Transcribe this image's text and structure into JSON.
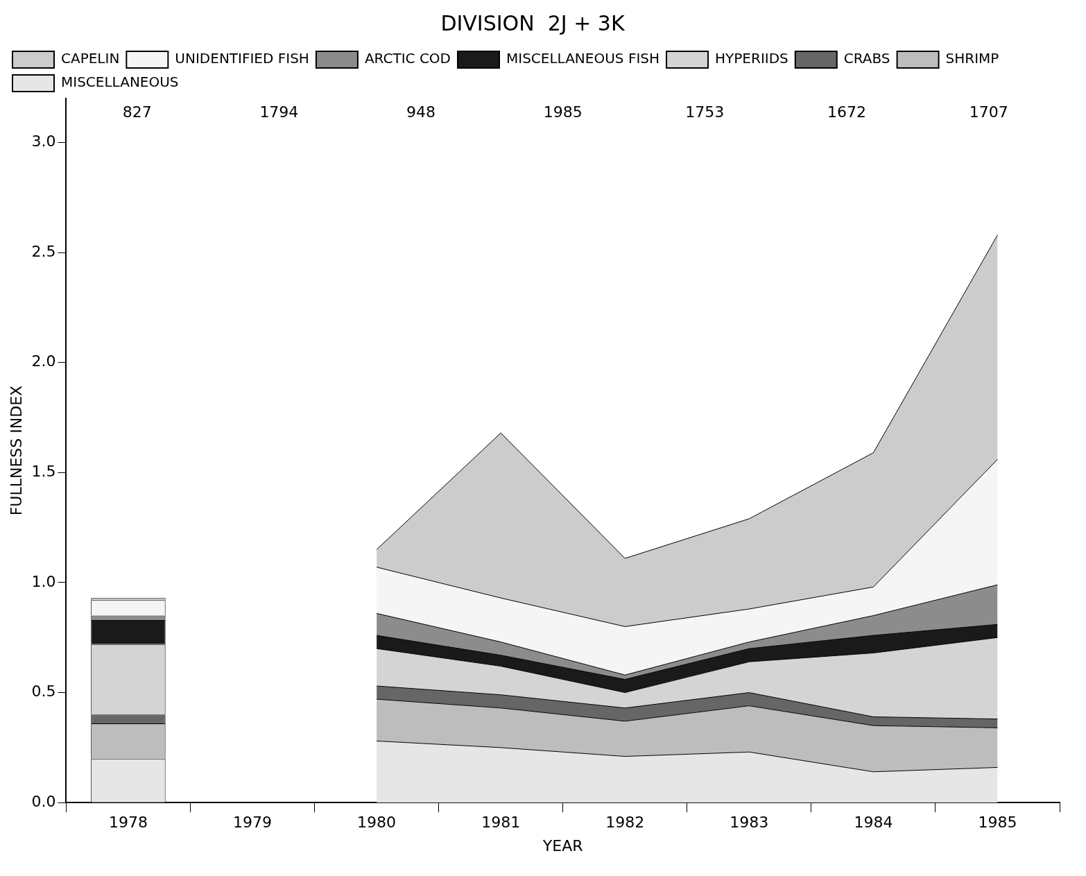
{
  "chart_data": {
    "type": "area",
    "stacked": true,
    "title": "DIVISION  2J + 3K",
    "xlabel": "YEAR",
    "ylabel": "FULLNESS INDEX",
    "categories": [
      "1978",
      "1979",
      "1980",
      "1981",
      "1982",
      "1983",
      "1984",
      "1985"
    ],
    "ylim": [
      0,
      3.2
    ],
    "yticks": [
      {
        "value": 0,
        "label": "0.0"
      },
      0.5,
      {
        "value": 1,
        "label": "1.0"
      },
      1.5,
      {
        "value": 2,
        "label": "2.0"
      },
      2.5,
      {
        "value": 3,
        "label": "3.0"
      }
    ],
    "grid": false,
    "legend": "top left",
    "annotations": [
      "827",
      "1794",
      "948",
      "1985",
      "1753",
      "1672",
      "1707"
    ],
    "series": [
      {
        "name": "MISCELLANEOUS",
        "color": "#e6e6e6",
        "values": [
          null,
          null,
          0.28,
          0.25,
          0.21,
          0.23,
          0.14,
          0.16
        ]
      },
      {
        "name": "SHRIMP",
        "color": "#bdbdbd",
        "values": [
          null,
          null,
          0.19,
          0.18,
          0.16,
          0.21,
          0.21,
          0.18
        ]
      },
      {
        "name": "CRABS",
        "color": "#666666",
        "values": [
          null,
          null,
          0.06,
          0.06,
          0.06,
          0.06,
          0.04,
          0.04
        ]
      },
      {
        "name": "HYPERIIDS",
        "color": "#d4d4d4",
        "values": [
          null,
          null,
          0.17,
          0.13,
          0.07,
          0.14,
          0.29,
          0.37
        ]
      },
      {
        "name": "MISCELLANEOUS FISH",
        "color": "#1a1a1a",
        "values": [
          null,
          null,
          0.06,
          0.05,
          0.06,
          0.06,
          0.08,
          0.06
        ]
      },
      {
        "name": "ARCTIC COD",
        "color": "#8c8c8c",
        "values": [
          null,
          null,
          0.1,
          0.06,
          0.02,
          0.03,
          0.09,
          0.18
        ]
      },
      {
        "name": "UNIDENTIFIED FISH",
        "color": "#f5f5f5",
        "values": [
          null,
          null,
          0.21,
          0.2,
          0.22,
          0.15,
          0.13,
          0.57
        ]
      },
      {
        "name": "CAPELIN",
        "color": "#cccccc",
        "values": [
          null,
          null,
          0.08,
          0.75,
          0.31,
          0.41,
          0.61,
          1.02
        ]
      },
      {
        "type": "bar",
        "color": "#e6e6e6",
        "values": [
          0.2,
          null,
          null,
          null,
          null,
          null,
          null,
          null
        ]
      },
      {
        "type": "bar",
        "color": "#bdbdbd",
        "values": [
          0.16,
          null,
          null,
          null,
          null,
          null,
          null,
          null
        ]
      },
      {
        "type": "bar",
        "color": "#666666",
        "values": [
          0.04,
          null,
          null,
          null,
          null,
          null,
          null,
          null
        ]
      },
      {
        "type": "bar",
        "color": "#d4d4d4",
        "values": [
          0.32,
          null,
          null,
          null,
          null,
          null,
          null,
          null
        ]
      },
      {
        "type": "bar",
        "color": "#1a1a1a",
        "values": [
          0.11,
          null,
          null,
          null,
          null,
          null,
          null,
          null
        ]
      },
      {
        "type": "bar",
        "color": "#8c8c8c",
        "values": [
          0.02,
          null,
          null,
          null,
          null,
          null,
          null,
          null
        ]
      },
      {
        "type": "bar",
        "color": "#f5f5f5",
        "values": [
          0.07,
          null,
          null,
          null,
          null,
          null,
          null,
          null
        ]
      },
      {
        "type": "bar",
        "color": "#cccccc",
        "values": [
          0.01,
          null,
          null,
          null,
          null,
          null,
          null,
          null
        ]
      }
    ]
  }
}
